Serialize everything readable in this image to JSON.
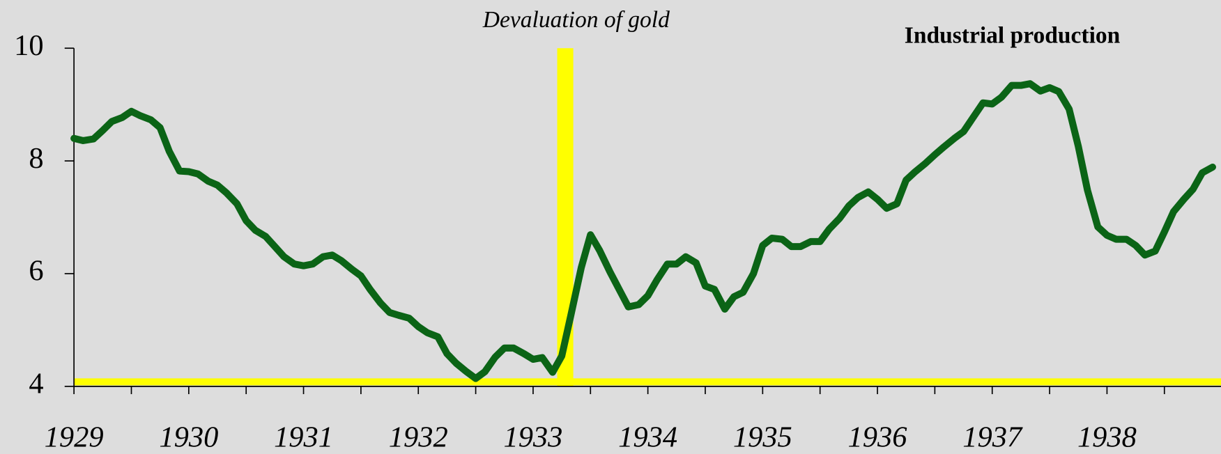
{
  "chart_data": {
    "type": "line",
    "title": "Industrial production",
    "annotation": "Devaluation of gold",
    "span": {
      "x": [
        1933.21,
        1933.35
      ],
      "color": "#ffff00"
    },
    "hline": {
      "value": 4.08,
      "color": "#ffff00"
    },
    "xlim": [
      1929,
      1939
    ],
    "xticks": [
      1929,
      1930,
      1931,
      1932,
      1933,
      1934,
      1935,
      1936,
      1937,
      1938
    ],
    "xminor_ticks": [
      1929.5,
      1930.5,
      1931.5,
      1932.5,
      1933.5,
      1934.5,
      1935.5,
      1936.5,
      1937.5,
      1938.5,
      1939
    ],
    "ylim": [
      4,
      10
    ],
    "yticks": [
      4,
      6,
      8,
      10
    ],
    "series": [
      {
        "color": "#0b6416",
        "x": [
          1929.0,
          1929.08,
          1929.17,
          1929.25,
          1929.33,
          1929.42,
          1929.5,
          1929.58,
          1929.67,
          1929.75,
          1929.83,
          1929.92,
          1930.0,
          1930.08,
          1930.17,
          1930.25,
          1930.33,
          1930.42,
          1930.5,
          1930.58,
          1930.67,
          1930.75,
          1930.83,
          1930.92,
          1931.0,
          1931.08,
          1931.17,
          1931.25,
          1931.33,
          1931.42,
          1931.5,
          1931.58,
          1931.67,
          1931.75,
          1931.83,
          1931.92,
          1932.0,
          1932.08,
          1932.17,
          1932.25,
          1932.33,
          1932.42,
          1932.5,
          1932.58,
          1932.67,
          1932.75,
          1932.83,
          1932.92,
          1933.0,
          1933.08,
          1933.17,
          1933.25,
          1933.33,
          1933.42,
          1933.5,
          1933.58,
          1933.67,
          1933.75,
          1933.83,
          1933.92,
          1934.0,
          1934.08,
          1934.17,
          1934.25,
          1934.33,
          1934.42,
          1934.5,
          1934.58,
          1934.67,
          1934.75,
          1934.83,
          1934.92,
          1935.0,
          1935.08,
          1935.17,
          1935.25,
          1935.33,
          1935.42,
          1935.5,
          1935.58,
          1935.67,
          1935.75,
          1935.83,
          1935.92,
          1936.0,
          1936.08,
          1936.17,
          1936.25,
          1936.33,
          1936.42,
          1936.5,
          1936.58,
          1936.67,
          1936.75,
          1936.83,
          1936.92,
          1937.0,
          1937.08,
          1937.17,
          1937.25,
          1937.33,
          1937.42,
          1937.5,
          1937.58,
          1937.67,
          1937.75,
          1937.83,
          1937.92,
          1938.0,
          1938.08,
          1938.17,
          1938.25,
          1938.33,
          1938.42,
          1938.5,
          1938.58,
          1938.67,
          1938.75,
          1938.83,
          1938.92
        ],
        "values": [
          8.4,
          8.36,
          8.39,
          8.54,
          8.7,
          8.77,
          8.88,
          8.8,
          8.73,
          8.59,
          8.17,
          7.82,
          7.81,
          7.77,
          7.64,
          7.57,
          7.43,
          7.24,
          6.94,
          6.77,
          6.66,
          6.48,
          6.3,
          6.17,
          6.14,
          6.17,
          6.3,
          6.33,
          6.23,
          6.08,
          5.96,
          5.72,
          5.48,
          5.31,
          5.26,
          5.21,
          5.06,
          4.95,
          4.88,
          4.58,
          4.41,
          4.26,
          4.14,
          4.26,
          4.52,
          4.68,
          4.68,
          4.58,
          4.48,
          4.51,
          4.25,
          4.54,
          5.27,
          6.11,
          6.69,
          6.41,
          6.03,
          5.72,
          5.41,
          5.45,
          5.61,
          5.89,
          6.17,
          6.17,
          6.3,
          6.19,
          5.78,
          5.72,
          5.37,
          5.59,
          5.67,
          6.0,
          6.5,
          6.63,
          6.61,
          6.48,
          6.48,
          6.57,
          6.57,
          6.79,
          6.98,
          7.2,
          7.35,
          7.45,
          7.32,
          7.16,
          7.24,
          7.66,
          7.81,
          7.96,
          8.11,
          8.25,
          8.4,
          8.52,
          8.76,
          9.03,
          9.01,
          9.13,
          9.34,
          9.34,
          9.37,
          9.24,
          9.3,
          9.23,
          8.92,
          8.26,
          7.48,
          6.83,
          6.68,
          6.61,
          6.61,
          6.5,
          6.33,
          6.4,
          6.74,
          7.1,
          7.32,
          7.5,
          7.79,
          7.89
        ]
      }
    ]
  }
}
